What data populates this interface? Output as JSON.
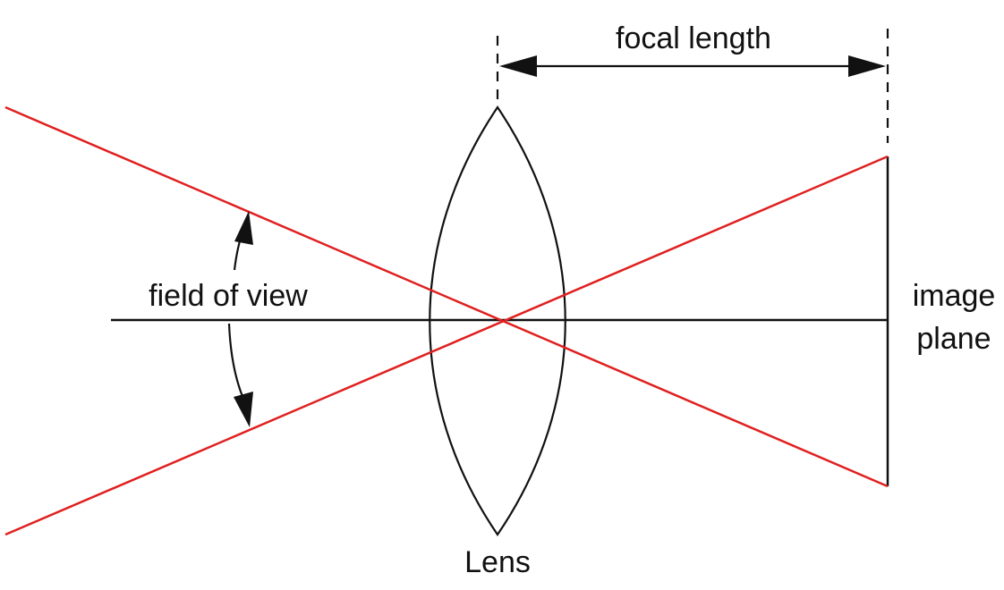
{
  "labels": {
    "focal_length": "focal length",
    "field_of_view": "field of view",
    "image_plane_line1": "image",
    "image_plane_line2": "plane",
    "lens": "Lens"
  },
  "colors": {
    "ray": "#e02020",
    "line": "#111111",
    "background": "#ffffff"
  }
}
